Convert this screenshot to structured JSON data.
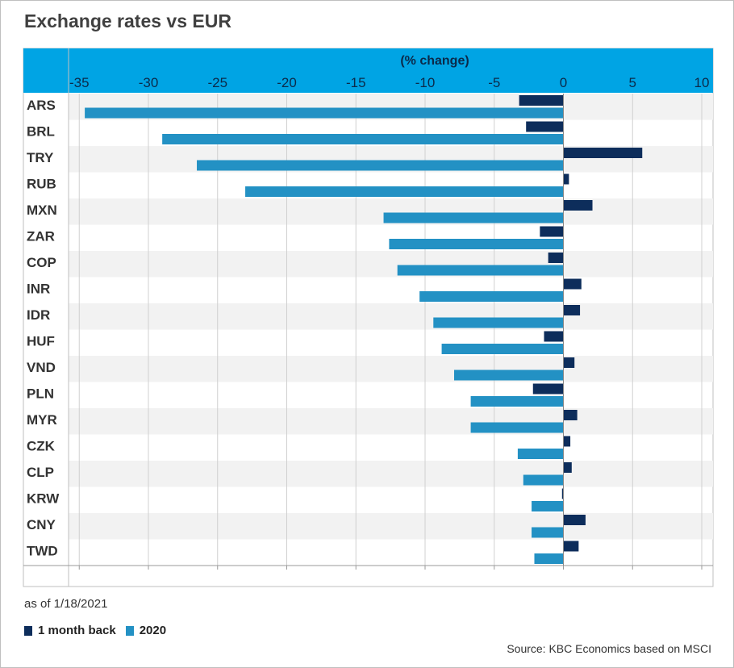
{
  "chart_data": {
    "type": "bar",
    "orientation": "horizontal",
    "title": "Exchange rates vs EUR",
    "xlabel": "(% change)",
    "xlim": [
      -37,
      11
    ],
    "xticks": [
      -35,
      -30,
      -25,
      -20,
      -15,
      -10,
      -5,
      0,
      5,
      10
    ],
    "note": "as of 1/18/2021",
    "source": "Source: KBC Economics based on MSCI",
    "legend_position": "bottom-left",
    "colors": {
      "header": "#00A4E4",
      "header_text": "#0B2A4A",
      "band": "#F2F2F2",
      "grid": "#D0D0D0"
    },
    "categories": [
      "ARS",
      "BRL",
      "TRY",
      "RUB",
      "MXN",
      "ZAR",
      "COP",
      "INR",
      "IDR",
      "HUF",
      "VND",
      "PLN",
      "MYR",
      "CZK",
      "CLP",
      "KRW",
      "CNY",
      "TWD"
    ],
    "series": [
      {
        "name": "1 month back",
        "color": "#0D2D5B",
        "values": [
          -3.2,
          -2.7,
          5.7,
          0.4,
          2.1,
          -1.7,
          -1.1,
          1.3,
          1.2,
          -1.4,
          0.8,
          -2.2,
          1.0,
          0.5,
          0.6,
          -0.1,
          1.6,
          1.1
        ]
      },
      {
        "name": "2020",
        "color": "#2391C4",
        "values": [
          -34.6,
          -29.0,
          -26.5,
          -23.0,
          -13.0,
          -12.6,
          -12.0,
          -10.4,
          -9.4,
          -8.8,
          -7.9,
          -6.7,
          -6.7,
          -3.3,
          -2.9,
          -2.3,
          -2.3,
          -2.1
        ]
      }
    ]
  }
}
